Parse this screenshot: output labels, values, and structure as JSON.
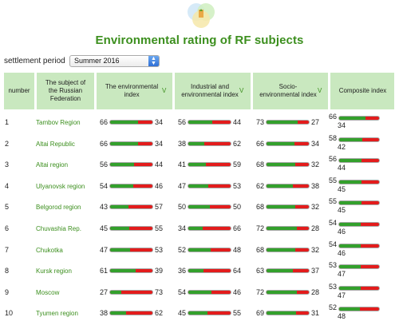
{
  "page": {
    "title": "Environmental rating of RF subjects"
  },
  "period": {
    "label": "settlement period",
    "selected": "Summer 2016"
  },
  "table": {
    "headers": {
      "number": "number",
      "subject": "The subject of the Russian Federation",
      "environmental": "The environmental index",
      "industrial": "Industrial and environmental index",
      "socio": "Socio-environmental index",
      "composite": "Composite index"
    },
    "rows": [
      {
        "num": "1",
        "region": "Tambov Region",
        "env": [
          66,
          34
        ],
        "ind": [
          56,
          44
        ],
        "soc": [
          73,
          27
        ],
        "comp": [
          66,
          34
        ]
      },
      {
        "num": "2",
        "region": "Altai Republic",
        "env": [
          66,
          34
        ],
        "ind": [
          38,
          62
        ],
        "soc": [
          66,
          34
        ],
        "comp": [
          58,
          42
        ]
      },
      {
        "num": "3",
        "region": "Altai region",
        "env": [
          56,
          44
        ],
        "ind": [
          41,
          59
        ],
        "soc": [
          68,
          32
        ],
        "comp": [
          56,
          44
        ]
      },
      {
        "num": "4",
        "region": "Ulyanovsk region",
        "env": [
          54,
          46
        ],
        "ind": [
          47,
          53
        ],
        "soc": [
          62,
          38
        ],
        "comp": [
          55,
          45
        ]
      },
      {
        "num": "5",
        "region": "Belgorod region",
        "env": [
          43,
          57
        ],
        "ind": [
          50,
          50
        ],
        "soc": [
          68,
          32
        ],
        "comp": [
          55,
          45
        ]
      },
      {
        "num": "6",
        "region": "Chuvashia Rep.",
        "env": [
          45,
          55
        ],
        "ind": [
          34,
          66
        ],
        "soc": [
          72,
          28
        ],
        "comp": [
          54,
          46
        ]
      },
      {
        "num": "7",
        "region": "Chukotka",
        "env": [
          47,
          53
        ],
        "ind": [
          52,
          48
        ],
        "soc": [
          68,
          32
        ],
        "comp": [
          54,
          46
        ]
      },
      {
        "num": "8",
        "region": "Kursk region",
        "env": [
          61,
          39
        ],
        "ind": [
          36,
          64
        ],
        "soc": [
          63,
          37
        ],
        "comp": [
          53,
          47
        ]
      },
      {
        "num": "9",
        "region": "Moscow",
        "env": [
          27,
          73
        ],
        "ind": [
          54,
          46
        ],
        "soc": [
          72,
          28
        ],
        "comp": [
          53,
          47
        ]
      },
      {
        "num": "10",
        "region": "Tyumen region",
        "env": [
          38,
          62
        ],
        "ind": [
          45,
          55
        ],
        "soc": [
          69,
          31
        ],
        "comp": [
          52,
          48
        ]
      }
    ]
  },
  "colors": {
    "accent_green": "#3c8f1e",
    "header_bg": "#c9e8bf",
    "bar_green": "#33a02c",
    "bar_red": "#e31c1c"
  },
  "icons": {
    "logo": "venn-logo-icon",
    "sort": "sort-arrow-icon",
    "select_arrow": "select-arrows-icon"
  }
}
